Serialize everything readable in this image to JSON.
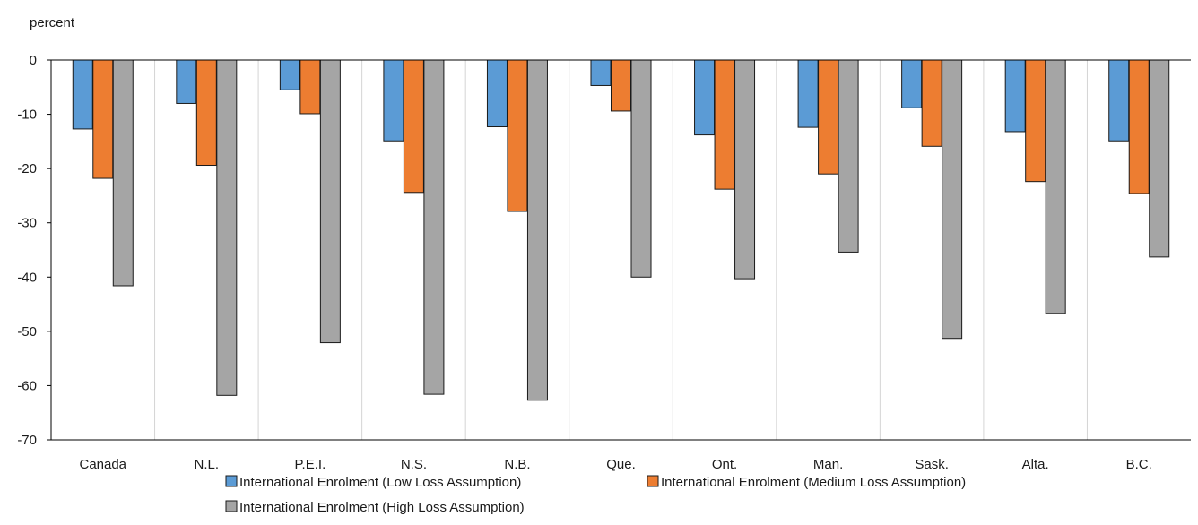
{
  "chart_data": {
    "type": "bar",
    "ylabel": "percent",
    "ylim": [
      -70,
      0
    ],
    "yticks": [
      0,
      -10,
      -20,
      -30,
      -40,
      -50,
      -60,
      -70
    ],
    "grid": "vertical separators between categories",
    "legend_position": "bottom",
    "categories": [
      "Canada",
      "N.L.",
      "P.E.I.",
      "N.S.",
      "N.B.",
      "Que.",
      "Ont.",
      "Man.",
      "Sask.",
      "Alta.",
      "B.C."
    ],
    "series": [
      {
        "name": "International Enrolment (Low Loss Assumption)",
        "color": "#5b9bd5",
        "values": [
          -12.7,
          -8.0,
          -5.5,
          -14.9,
          -12.3,
          -4.7,
          -13.8,
          -12.4,
          -8.8,
          -13.2,
          -14.9
        ]
      },
      {
        "name": "International Enrolment (Medium Loss Assumption)",
        "color": "#ed7d31",
        "values": [
          -21.8,
          -19.4,
          -9.9,
          -24.4,
          -27.9,
          -9.4,
          -23.8,
          -21.0,
          -15.9,
          -22.4,
          -24.6
        ]
      },
      {
        "name": "International Enrolment (High Loss Assumption)",
        "color": "#a5a5a5",
        "values": [
          -41.6,
          -61.8,
          -52.1,
          -61.6,
          -62.7,
          -40.0,
          -40.3,
          -35.4,
          -51.3,
          -46.7,
          -36.3
        ]
      }
    ]
  }
}
